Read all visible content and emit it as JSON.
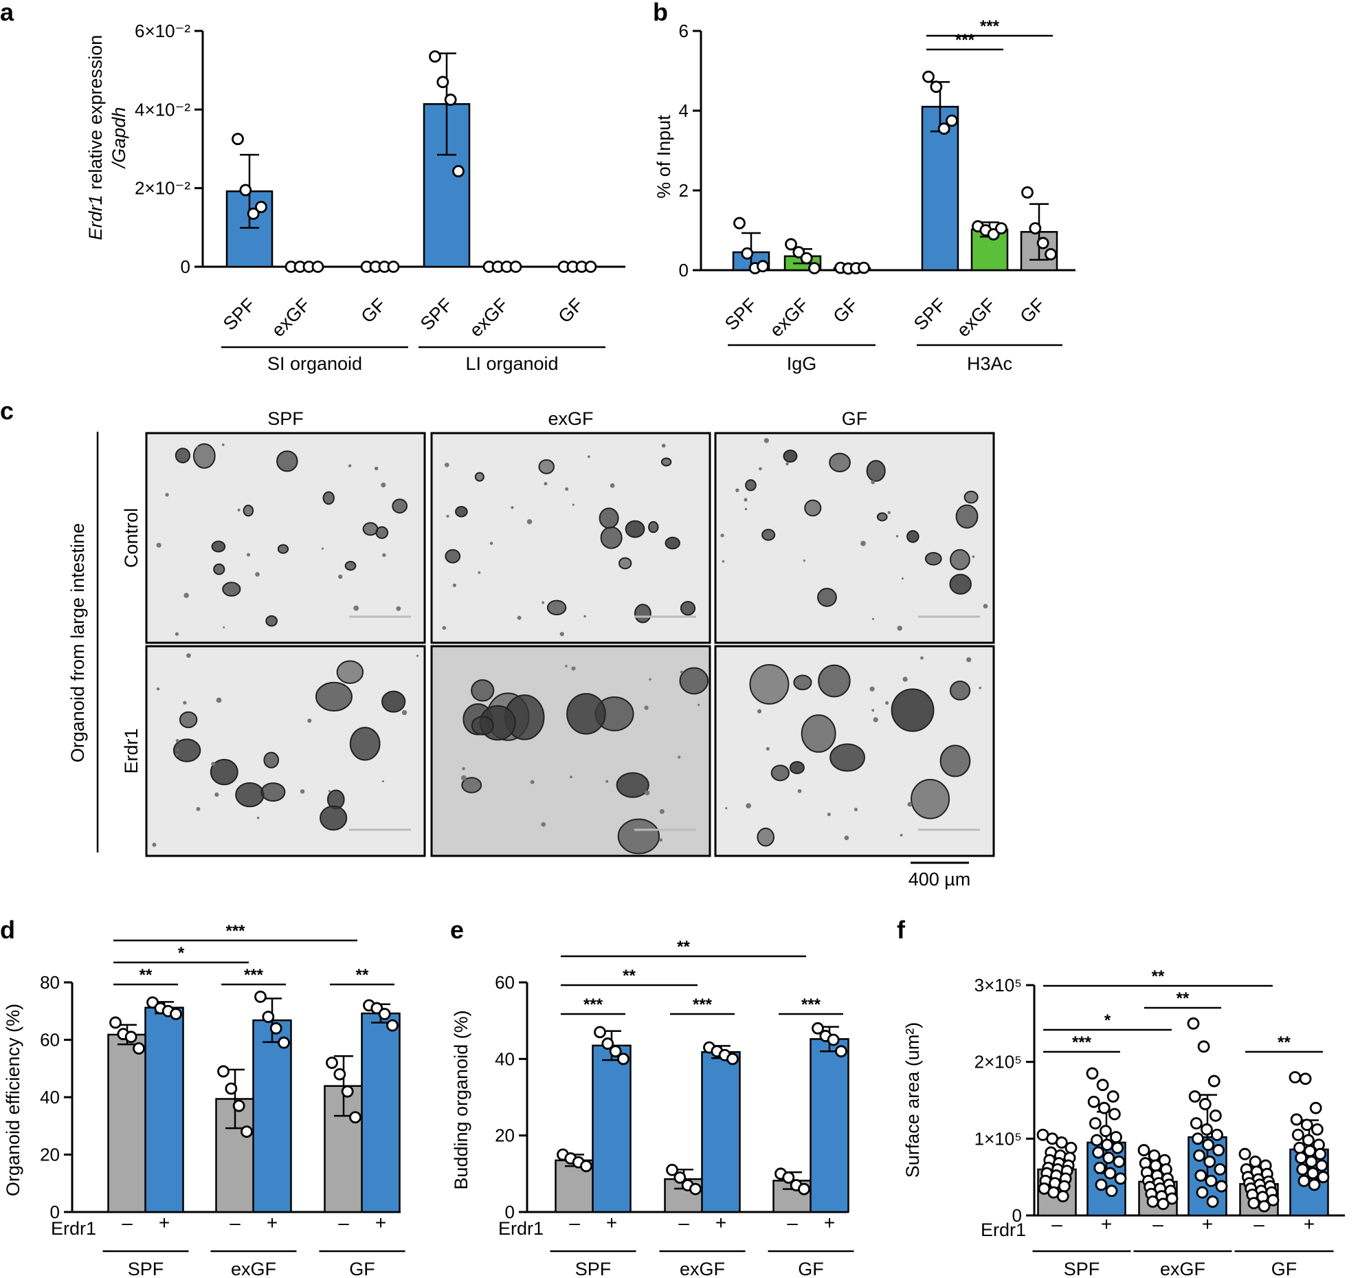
{
  "colors": {
    "blue": "#3f86c8",
    "green": "#5bbf3a",
    "gray": "#a8a8a8",
    "micro_light": "#e9e9e9",
    "micro_dark": "#cfcfcf",
    "organoid": "#3a3a3a"
  },
  "panel_letters": [
    "a",
    "b",
    "c",
    "d",
    "e",
    "f"
  ],
  "panel_c": {
    "columns": [
      "SPF",
      "exGF",
      "GF"
    ],
    "rows": [
      "Control",
      "Erdr1"
    ],
    "side_label": "Organoid from large intestine",
    "scalebar_label": "400 µm"
  },
  "chart_data": [
    {
      "panel": "a",
      "type": "bar",
      "ylabel_italic": "Erdr1",
      "ylabel_rest": " relative expression",
      "ylabel_line2": "/Gapdh",
      "ylim": [
        0,
        0.06
      ],
      "yticks": [
        0,
        0.02,
        0.04,
        0.06
      ],
      "ytick_labels": [
        "0",
        "2×10⁻²",
        "4×10⁻²",
        "6×10⁻²"
      ],
      "categories": [
        "SPF",
        "exGF",
        "GF",
        "SPF",
        "exGF",
        "GF"
      ],
      "groups": [
        {
          "label": "SI organoid",
          "span": [
            0,
            2
          ]
        },
        {
          "label": "LI organoid",
          "span": [
            3,
            5
          ]
        }
      ],
      "bars": [
        {
          "value": 0.0192,
          "sd": 0.0093,
          "points": [
            0.0325,
            0.0195,
            0.0135,
            0.0152
          ],
          "color": "blue"
        },
        {
          "value": 0,
          "sd": 0,
          "points": [
            0,
            0,
            0,
            0
          ],
          "color": "blue"
        },
        {
          "value": 0,
          "sd": 0,
          "points": [
            0,
            0,
            0,
            0
          ],
          "color": "blue"
        },
        {
          "value": 0.0414,
          "sd": 0.0129,
          "points": [
            0.0535,
            0.047,
            0.0425,
            0.0243
          ],
          "color": "blue"
        },
        {
          "value": 0,
          "sd": 0,
          "points": [
            0,
            0,
            0,
            0
          ],
          "color": "blue"
        },
        {
          "value": 0,
          "sd": 0,
          "points": [
            0,
            0,
            0,
            0
          ],
          "color": "blue"
        }
      ],
      "significance": []
    },
    {
      "panel": "b",
      "type": "bar",
      "ylabel": "% of Input",
      "ylim": [
        0,
        6
      ],
      "yticks": [
        0,
        2,
        4,
        6
      ],
      "ytick_labels": [
        "0",
        "2",
        "4",
        "6"
      ],
      "categories": [
        "SPF",
        "exGF",
        "GF",
        "SPF",
        "exGF",
        "GF"
      ],
      "groups": [
        {
          "label": "IgG",
          "span": [
            0,
            2
          ]
        },
        {
          "label": "H3Ac",
          "span": [
            3,
            5
          ]
        }
      ],
      "bars": [
        {
          "value": 0.45,
          "sd": 0.48,
          "points": [
            1.18,
            0.42,
            0.05,
            0.1
          ],
          "color": "blue"
        },
        {
          "value": 0.35,
          "sd": 0.18,
          "points": [
            0.65,
            0.45,
            0.3,
            0.05
          ],
          "color": "green"
        },
        {
          "value": 0.05,
          "sd": 0.03,
          "points": [
            0.06,
            0.04,
            0.05,
            0.06
          ],
          "color": "gray"
        },
        {
          "value": 4.1,
          "sd": 0.62,
          "points": [
            4.85,
            4.6,
            3.55,
            3.75
          ],
          "color": "blue"
        },
        {
          "value": 1.02,
          "sd": 0.18,
          "points": [
            1.1,
            1.0,
            0.9,
            1.05
          ],
          "color": "green"
        },
        {
          "value": 0.96,
          "sd": 0.7,
          "points": [
            1.95,
            1.05,
            0.68,
            0.4
          ],
          "color": "gray"
        }
      ],
      "significance": [
        {
          "from": 3,
          "to": 4,
          "level": 0,
          "label": "***"
        },
        {
          "from": 3,
          "to": 5,
          "level": 1,
          "label": "***"
        }
      ]
    },
    {
      "panel": "d",
      "type": "bar",
      "ylabel": "Organoid efficiency (%)",
      "ylim": [
        0,
        80
      ],
      "yticks": [
        0,
        20,
        40,
        60,
        80
      ],
      "ytick_labels": [
        "0",
        "20",
        "40",
        "60",
        "80"
      ],
      "treatment_label": "Erdr1",
      "categories": [
        "–",
        "+",
        "–",
        "+",
        "–",
        "+"
      ],
      "groups": [
        {
          "label": "SPF",
          "span": [
            0,
            1
          ]
        },
        {
          "label": "exGF",
          "span": [
            2,
            3
          ]
        },
        {
          "label": "GF",
          "span": [
            4,
            5
          ]
        }
      ],
      "bars": [
        {
          "value": 61.8,
          "sd": 3.4,
          "points": [
            66,
            62,
            61,
            57
          ],
          "color": "gray"
        },
        {
          "value": 71.2,
          "sd": 2.0,
          "points": [
            73,
            71,
            70,
            69
          ],
          "color": "blue"
        },
        {
          "value": 39.4,
          "sd": 10.2,
          "points": [
            49,
            43,
            37,
            28
          ],
          "color": "gray"
        },
        {
          "value": 66.8,
          "sd": 7.6,
          "points": [
            75,
            68,
            64,
            59
          ],
          "color": "blue"
        },
        {
          "value": 43.9,
          "sd": 10.4,
          "points": [
            52,
            48,
            42,
            33
          ],
          "color": "gray"
        },
        {
          "value": 69.2,
          "sd": 3.2,
          "points": [
            72,
            71,
            69,
            65
          ],
          "color": "blue"
        }
      ],
      "significance": [
        {
          "from": 0,
          "to": 1,
          "level": 0,
          "label": "**"
        },
        {
          "from": 2,
          "to": 3,
          "level": 0,
          "label": "***"
        },
        {
          "from": 4,
          "to": 5,
          "level": 0,
          "label": "**"
        },
        {
          "from": 0,
          "to": 2,
          "level": 1,
          "label": "*"
        },
        {
          "from": 0,
          "to": 4,
          "level": 2,
          "label": "***"
        }
      ]
    },
    {
      "panel": "e",
      "type": "bar",
      "ylabel": "Budding organoid (%)",
      "ylim": [
        0,
        60
      ],
      "yticks": [
        0,
        20,
        40,
        60
      ],
      "ytick_labels": [
        "0",
        "20",
        "40",
        "60"
      ],
      "treatment_label": "Erdr1",
      "categories": [
        "–",
        "+",
        "–",
        "+",
        "–",
        "+"
      ],
      "groups": [
        {
          "label": "SPF",
          "span": [
            0,
            1
          ]
        },
        {
          "label": "exGF",
          "span": [
            2,
            3
          ]
        },
        {
          "label": "GF",
          "span": [
            4,
            5
          ]
        }
      ],
      "bars": [
        {
          "value": 13.5,
          "sd": 1.5,
          "points": [
            15,
            14,
            13,
            12
          ],
          "color": "gray"
        },
        {
          "value": 43.5,
          "sd": 3.8,
          "points": [
            47,
            44,
            42,
            40
          ],
          "color": "blue"
        },
        {
          "value": 8.6,
          "sd": 2.5,
          "points": [
            11,
            9,
            7,
            6
          ],
          "color": "gray"
        },
        {
          "value": 41.8,
          "sd": 1.6,
          "points": [
            43,
            42,
            41,
            40
          ],
          "color": "blue"
        },
        {
          "value": 8.2,
          "sd": 2.2,
          "points": [
            10,
            9,
            7,
            6
          ],
          "color": "gray"
        },
        {
          "value": 45.2,
          "sd": 3.2,
          "points": [
            48,
            46,
            45,
            42
          ],
          "color": "blue"
        }
      ],
      "significance": [
        {
          "from": 0,
          "to": 1,
          "level": 0,
          "label": "***"
        },
        {
          "from": 2,
          "to": 3,
          "level": 0,
          "label": "***"
        },
        {
          "from": 4,
          "to": 5,
          "level": 0,
          "label": "***"
        },
        {
          "from": 0,
          "to": 2,
          "level": 1,
          "label": "**"
        },
        {
          "from": 0,
          "to": 4,
          "level": 2,
          "label": "**"
        }
      ]
    },
    {
      "panel": "f",
      "type": "bar",
      "ylabel": "Surface area (um²)",
      "ylim": [
        0,
        300000
      ],
      "yticks": [
        0,
        100000,
        200000,
        300000
      ],
      "ytick_labels": [
        "0",
        "1×10⁵",
        "2×10⁵",
        "3×10⁵"
      ],
      "treatment_label": "Erdr1",
      "categories": [
        "–",
        "+",
        "–",
        "+",
        "–",
        "+"
      ],
      "groups": [
        {
          "label": "SPF",
          "span": [
            0,
            1
          ]
        },
        {
          "label": "exGF",
          "span": [
            2,
            3
          ]
        },
        {
          "label": "GF",
          "span": [
            4,
            5
          ]
        }
      ],
      "bars": [
        {
          "value": 60000,
          "sd": 20000,
          "color": "gray",
          "points": [
            105000,
            100000,
            95000,
            88000,
            82000,
            78000,
            75000,
            72000,
            68000,
            65000,
            62000,
            60000,
            58000,
            55000,
            52000,
            48000,
            45000,
            42000,
            38000,
            35000,
            30000,
            25000
          ]
        },
        {
          "value": 95000,
          "sd": 40000,
          "color": "blue",
          "points": [
            185000,
            170000,
            155000,
            148000,
            140000,
            132000,
            120000,
            110000,
            102000,
            98000,
            92000,
            88000,
            82000,
            75000,
            70000,
            62000,
            55000,
            48000,
            40000,
            32000
          ]
        },
        {
          "value": 44000,
          "sd": 15000,
          "color": "gray",
          "points": [
            85000,
            78000,
            72000,
            68000,
            65000,
            60000,
            56000,
            52000,
            48000,
            45000,
            42000,
            40000,
            37000,
            35000,
            32000,
            28000,
            25000,
            22000,
            18000,
            15000
          ]
        },
        {
          "value": 102000,
          "sd": 55000,
          "color": "blue",
          "points": [
            250000,
            220000,
            175000,
            155000,
            145000,
            130000,
            120000,
            112000,
            105000,
            100000,
            92000,
            85000,
            78000,
            70000,
            60000,
            52000,
            45000,
            38000,
            30000,
            18000
          ]
        },
        {
          "value": 41000,
          "sd": 15000,
          "color": "gray",
          "points": [
            80000,
            70000,
            65000,
            60000,
            57000,
            54000,
            50000,
            47000,
            44000,
            42000,
            40000,
            38000,
            35000,
            32000,
            30000,
            27000,
            24000,
            20000,
            16000,
            12000
          ]
        },
        {
          "value": 86000,
          "sd": 38000,
          "color": "blue",
          "points": [
            180000,
            178000,
            140000,
            125000,
            118000,
            112000,
            105000,
            98000,
            92000,
            88000,
            84000,
            80000,
            75000,
            70000,
            65000,
            60000,
            55000,
            50000,
            45000,
            40000
          ]
        }
      ],
      "significance": [
        {
          "from": 0,
          "to": 1,
          "level": 0,
          "label": "***"
        },
        {
          "from": 4,
          "to": 5,
          "level": 0,
          "label": "**"
        },
        {
          "from": 0,
          "to": 2,
          "level": 1,
          "label": "*"
        },
        {
          "from": 2,
          "to": 3,
          "level": 2,
          "label": "**"
        },
        {
          "from": 0,
          "to": 4,
          "level": 3,
          "label": "**"
        }
      ]
    }
  ]
}
